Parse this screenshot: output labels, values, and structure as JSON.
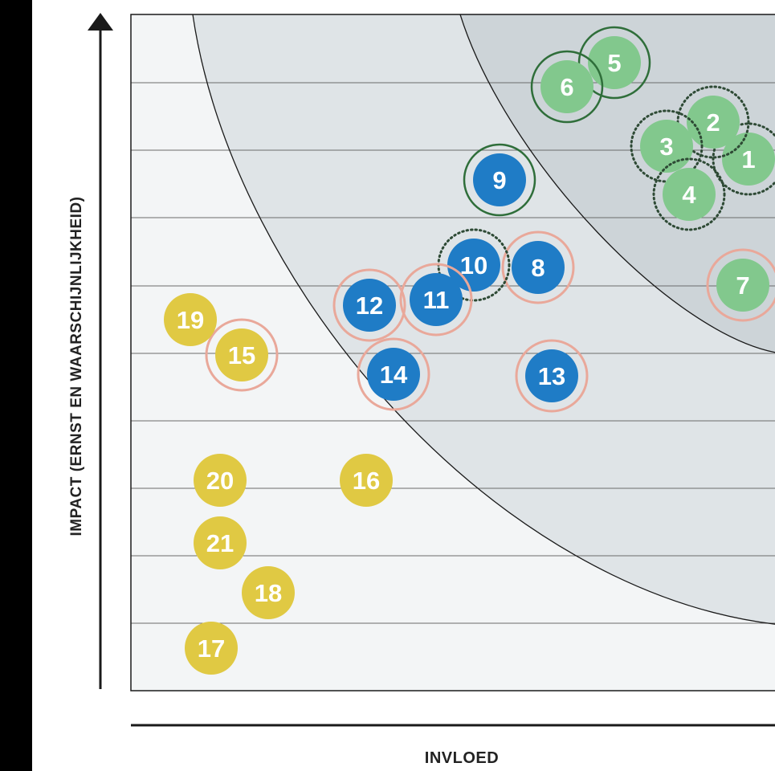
{
  "axes": {
    "y_label": "IMPACT (ERNST EN WAARSCHIJNLIJKHEID)",
    "x_label": "INVLOED"
  },
  "colors": {
    "background": "#f3f5f6",
    "zone_mid": "#dfe4e7",
    "zone_high": "#cdd4d8",
    "gridline": "#6b6b6b",
    "yellow": "#e0c943",
    "blue": "#1f7cc6",
    "green": "#82c88d",
    "ring_green": "#2f6e3a",
    "ring_pink": "#e9a89a",
    "ring_dotted": "#2e4a35"
  },
  "items": [
    {
      "label": "1",
      "color": "green",
      "ring": "dotted"
    },
    {
      "label": "2",
      "color": "green",
      "ring": "dotted"
    },
    {
      "label": "3",
      "color": "green",
      "ring": "dotted"
    },
    {
      "label": "4",
      "color": "green",
      "ring": "dotted"
    },
    {
      "label": "5",
      "color": "green",
      "ring": "solid-green"
    },
    {
      "label": "6",
      "color": "green",
      "ring": "solid-green"
    },
    {
      "label": "7",
      "color": "green",
      "ring": "pink"
    },
    {
      "label": "8",
      "color": "blue",
      "ring": "pink"
    },
    {
      "label": "9",
      "color": "blue",
      "ring": "solid-green"
    },
    {
      "label": "10",
      "color": "blue",
      "ring": "dotted"
    },
    {
      "label": "11",
      "color": "blue",
      "ring": "pink"
    },
    {
      "label": "12",
      "color": "blue",
      "ring": "pink"
    },
    {
      "label": "13",
      "color": "blue",
      "ring": "pink"
    },
    {
      "label": "14",
      "color": "blue",
      "ring": "pink"
    },
    {
      "label": "15",
      "color": "yellow",
      "ring": "pink"
    },
    {
      "label": "16",
      "color": "yellow",
      "ring": "none"
    },
    {
      "label": "17",
      "color": "yellow",
      "ring": "none"
    },
    {
      "label": "18",
      "color": "yellow",
      "ring": "none"
    },
    {
      "label": "19",
      "color": "yellow",
      "ring": "none"
    },
    {
      "label": "20",
      "color": "yellow",
      "ring": "none"
    },
    {
      "label": "21",
      "color": "yellow",
      "ring": "none"
    }
  ]
}
